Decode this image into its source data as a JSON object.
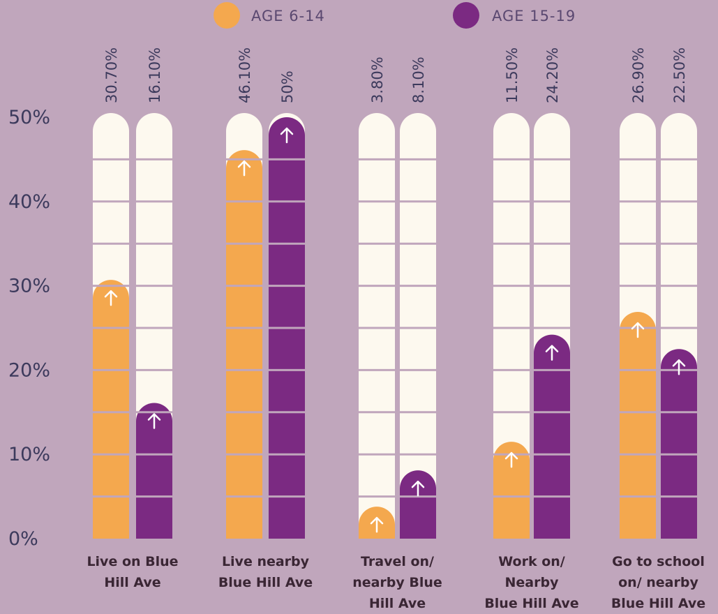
{
  "chart_data": {
    "type": "bar",
    "categories": [
      "Live on Blue\nHill Ave",
      "Live nearby\nBlue Hill Ave",
      "Travel on/\nnearby Blue\nHill Ave",
      "Work on/\nNearby\nBlue Hill Ave",
      "Go to school\non/ nearby\nBlue Hill Ave"
    ],
    "series": [
      {
        "name": "AGE 6-14",
        "color": "#f4a84e",
        "values": [
          30.7,
          46.1,
          3.8,
          11.5,
          26.9
        ],
        "value_labels": [
          "30.70%",
          "46.10%",
          "3.80%",
          "11.50%",
          "26.90%"
        ]
      },
      {
        "name": "AGE 15-19",
        "color": "#7b2a82",
        "values": [
          16.1,
          50,
          8.1,
          24.2,
          22.5
        ],
        "value_labels": [
          "16.10%",
          "50%",
          "8.10%",
          "24.20%",
          "22.50%"
        ]
      }
    ],
    "ylim": [
      0,
      50
    ],
    "yticks": [
      {
        "value": 0,
        "label": "0%"
      },
      {
        "value": 10,
        "label": "10%"
      },
      {
        "value": 20,
        "label": "20%"
      },
      {
        "value": 30,
        "label": "30%"
      },
      {
        "value": 40,
        "label": "40%"
      },
      {
        "value": 50,
        "label": "50%"
      }
    ],
    "minor_yticks": [
      5,
      15,
      25,
      35,
      45
    ],
    "grid": true,
    "legend": "top"
  }
}
